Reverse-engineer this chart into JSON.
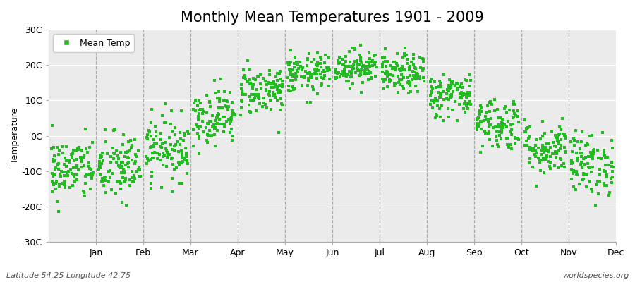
{
  "title": "Monthly Mean Temperatures 1901 - 2009",
  "ylabel": "Temperature",
  "subtitle_left": "Latitude 54.25 Longitude 42.75",
  "subtitle_right": "worldspecies.org",
  "months": [
    "Jan",
    "Feb",
    "Mar",
    "Apr",
    "May",
    "Jun",
    "Jul",
    "Aug",
    "Sep",
    "Oct",
    "Nov",
    "Dec"
  ],
  "ylim": [
    -30,
    30
  ],
  "yticks": [
    -30,
    -20,
    -10,
    0,
    10,
    20,
    30
  ],
  "ytick_labels": [
    "-30C",
    "-20C",
    "-10C",
    "0C",
    "10C",
    "20C",
    "30C"
  ],
  "marker_color": "#22bb22",
  "marker": "s",
  "marker_size": 3.5,
  "legend_label": "Mean Temp",
  "fig_bg_color": "#ffffff",
  "plot_bg_color": "#ebebeb",
  "dashed_line_color": "#aaaaaa",
  "title_fontsize": 15,
  "axis_fontsize": 9,
  "tick_fontsize": 9,
  "num_years": 109,
  "monthly_means": [
    -9.5,
    -9.0,
    -3.5,
    5.5,
    13.0,
    17.5,
    19.5,
    17.5,
    11.5,
    3.5,
    -3.5,
    -8.0
  ],
  "monthly_stds": [
    4.5,
    5.0,
    4.5,
    4.0,
    3.5,
    2.8,
    2.5,
    2.8,
    3.2,
    3.8,
    3.8,
    4.5
  ]
}
